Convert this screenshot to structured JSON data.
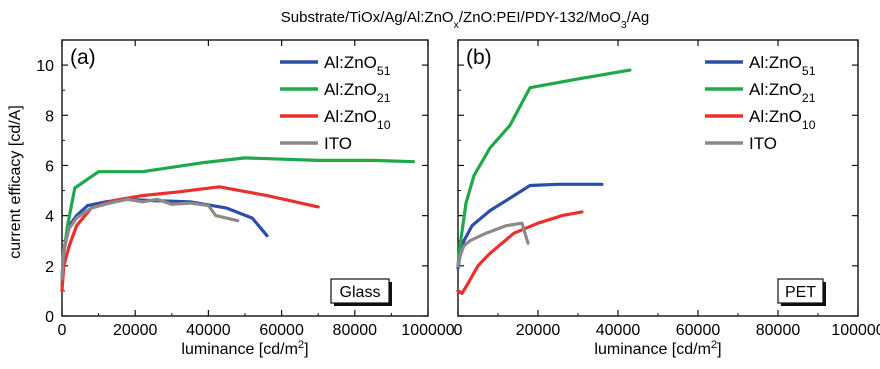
{
  "figure_title": "Substrate/TiOx/Ag/Al:ZnOx/ZnO:PEI/PDY-132/MoO3/Ag",
  "shared_ylabel": "current efficacy [cd/A]",
  "colors": {
    "Al:ZnO51": "#2b4ea8",
    "Al:ZnO21": "#1fa84a",
    "Al:ZnO10": "#e8302e",
    "ITO": "#8a8a8a"
  },
  "chart_data": [
    {
      "type": "line",
      "panel_label": "(a)",
      "substrate_label": "Glass",
      "xlabel": "luminance [cd/m2]",
      "ylabel": "current efficacy [cd/A]",
      "xlim": [
        0,
        100000
      ],
      "ylim": [
        0,
        11
      ],
      "xticks": [
        "0",
        "20000",
        "40000",
        "60000",
        "80000",
        "100000"
      ],
      "yticks": [
        "0",
        "2",
        "4",
        "6",
        "8",
        "10"
      ],
      "legend_position": "top-right",
      "series": [
        {
          "name": "Al:ZnO51",
          "color": "#2b4ea8",
          "points": [
            [
              0,
              1.5
            ],
            [
              500,
              2.6
            ],
            [
              2000,
              3.6
            ],
            [
              4000,
              4.0
            ],
            [
              7000,
              4.4
            ],
            [
              12000,
              4.55
            ],
            [
              17000,
              4.65
            ],
            [
              25000,
              4.6
            ],
            [
              35000,
              4.55
            ],
            [
              45000,
              4.3
            ],
            [
              52000,
              3.9
            ],
            [
              56000,
              3.2
            ]
          ]
        },
        {
          "name": "Al:ZnO21",
          "color": "#1fa84a",
          "points": [
            [
              0,
              1.2
            ],
            [
              500,
              2.5
            ],
            [
              1500,
              3.6
            ],
            [
              3500,
              5.1
            ],
            [
              10000,
              5.75
            ],
            [
              22000,
              5.75
            ],
            [
              38000,
              6.1
            ],
            [
              50000,
              6.3
            ],
            [
              70000,
              6.2
            ],
            [
              85000,
              6.2
            ],
            [
              96000,
              6.15
            ]
          ]
        },
        {
          "name": "Al:ZnO10",
          "color": "#e8302e",
          "points": [
            [
              0,
              1.0
            ],
            [
              500,
              2.0
            ],
            [
              2000,
              2.8
            ],
            [
              4000,
              3.6
            ],
            [
              8000,
              4.3
            ],
            [
              14000,
              4.6
            ],
            [
              22000,
              4.8
            ],
            [
              32000,
              4.95
            ],
            [
              43000,
              5.15
            ],
            [
              56000,
              4.8
            ],
            [
              70000,
              4.35
            ]
          ]
        },
        {
          "name": "ITO",
          "color": "#8a8a8a",
          "points": [
            [
              0,
              1.5
            ],
            [
              500,
              2.7
            ],
            [
              2000,
              3.5
            ],
            [
              4000,
              3.9
            ],
            [
              8000,
              4.3
            ],
            [
              13000,
              4.5
            ],
            [
              18000,
              4.65
            ],
            [
              22000,
              4.55
            ],
            [
              26000,
              4.65
            ],
            [
              30000,
              4.45
            ],
            [
              35000,
              4.5
            ],
            [
              40000,
              4.4
            ],
            [
              42000,
              4.0
            ],
            [
              48000,
              3.8
            ]
          ]
        }
      ]
    },
    {
      "type": "line",
      "panel_label": "(b)",
      "substrate_label": "PET",
      "xlabel": "luminance [cd/m2]",
      "ylabel": "",
      "xlim": [
        0,
        100000
      ],
      "ylim": [
        0,
        11
      ],
      "xticks": [
        "0",
        "20000",
        "40000",
        "60000",
        "80000",
        "100000"
      ],
      "yticks": [],
      "legend_position": "top-right",
      "series": [
        {
          "name": "Al:ZnO51",
          "color": "#2b4ea8",
          "points": [
            [
              0,
              1.9
            ],
            [
              500,
              2.4
            ],
            [
              1500,
              3.0
            ],
            [
              3500,
              3.6
            ],
            [
              8000,
              4.2
            ],
            [
              13000,
              4.7
            ],
            [
              18000,
              5.2
            ],
            [
              25000,
              5.25
            ],
            [
              36000,
              5.25
            ]
          ]
        },
        {
          "name": "Al:ZnO21",
          "color": "#1fa84a",
          "points": [
            [
              0,
              2.0
            ],
            [
              500,
              2.8
            ],
            [
              2000,
              4.5
            ],
            [
              4000,
              5.6
            ],
            [
              8000,
              6.7
            ],
            [
              13000,
              7.6
            ],
            [
              18000,
              9.1
            ],
            [
              30000,
              9.45
            ],
            [
              43000,
              9.8
            ]
          ]
        },
        {
          "name": "Al:ZnO10",
          "color": "#e8302e",
          "points": [
            [
              0,
              1.0
            ],
            [
              1000,
              0.9
            ],
            [
              2500,
              1.3
            ],
            [
              5000,
              2.0
            ],
            [
              8000,
              2.5
            ],
            [
              14000,
              3.3
            ],
            [
              20000,
              3.7
            ],
            [
              26000,
              4.0
            ],
            [
              31000,
              4.15
            ]
          ]
        },
        {
          "name": "ITO",
          "color": "#8a8a8a",
          "points": [
            [
              0,
              2.0
            ],
            [
              500,
              2.4
            ],
            [
              1500,
              2.8
            ],
            [
              3000,
              3.0
            ],
            [
              7000,
              3.3
            ],
            [
              12000,
              3.6
            ],
            [
              16000,
              3.7
            ],
            [
              17500,
              2.9
            ]
          ]
        }
      ]
    }
  ]
}
